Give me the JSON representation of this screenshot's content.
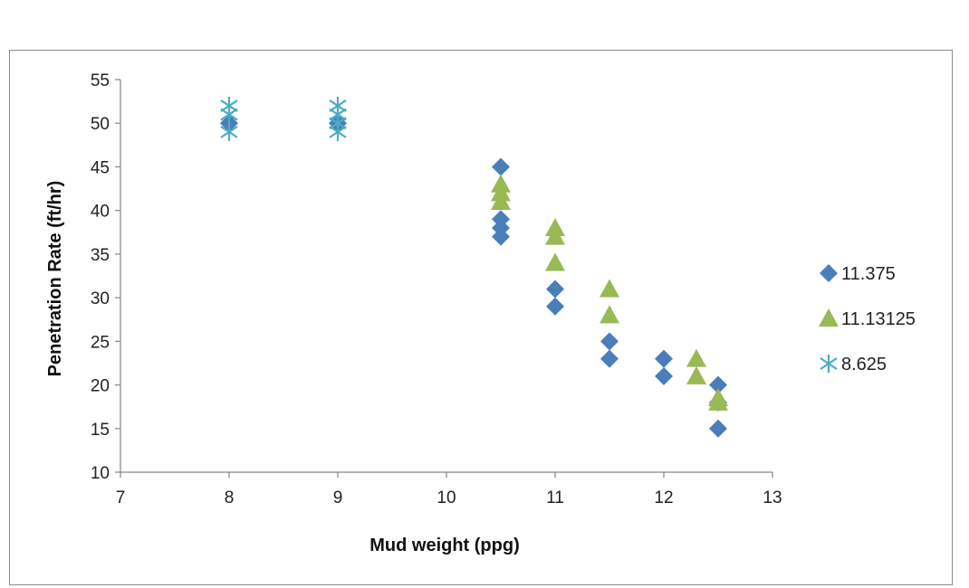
{
  "chart_data": {
    "type": "scatter",
    "title": "",
    "xlabel": "Mud weight (ppg)",
    "ylabel": "Penetration Rate (ft/hr)",
    "xlim": [
      7,
      13
    ],
    "ylim": [
      10,
      55
    ],
    "xticks": [
      "7",
      "8",
      "9",
      "10",
      "11",
      "12",
      "13"
    ],
    "yticks": [
      "10",
      "15",
      "20",
      "25",
      "30",
      "35",
      "40",
      "45",
      "50",
      "55"
    ],
    "grid": false,
    "legend_position": "right",
    "series": [
      {
        "name": "11.375",
        "marker": "diamond",
        "color": "#4a7ebb",
        "points": [
          [
            8,
            50
          ],
          [
            9,
            50
          ],
          [
            10.5,
            45
          ],
          [
            10.5,
            39
          ],
          [
            10.5,
            38
          ],
          [
            10.5,
            37
          ],
          [
            11,
            31
          ],
          [
            11,
            29
          ],
          [
            11.5,
            25
          ],
          [
            11.5,
            23
          ],
          [
            12,
            23
          ],
          [
            12,
            21
          ],
          [
            12.5,
            20
          ],
          [
            12.5,
            18
          ],
          [
            12.5,
            15
          ]
        ]
      },
      {
        "name": "11.13125",
        "marker": "triangle",
        "color": "#98b954",
        "points": [
          [
            10.5,
            43
          ],
          [
            10.5,
            42
          ],
          [
            10.5,
            41
          ],
          [
            11,
            38
          ],
          [
            11,
            37
          ],
          [
            11,
            34
          ],
          [
            11.5,
            31
          ],
          [
            11.5,
            28
          ],
          [
            12.3,
            23
          ],
          [
            12.3,
            21
          ],
          [
            12.5,
            18.5
          ],
          [
            12.5,
            18
          ]
        ]
      },
      {
        "name": "8.625",
        "marker": "asterisk",
        "color": "#4bacc6",
        "points": [
          [
            8,
            52
          ],
          [
            8,
            51
          ],
          [
            8,
            49
          ],
          [
            9,
            52
          ],
          [
            9,
            51
          ],
          [
            9,
            50
          ],
          [
            9,
            49
          ]
        ]
      }
    ]
  }
}
